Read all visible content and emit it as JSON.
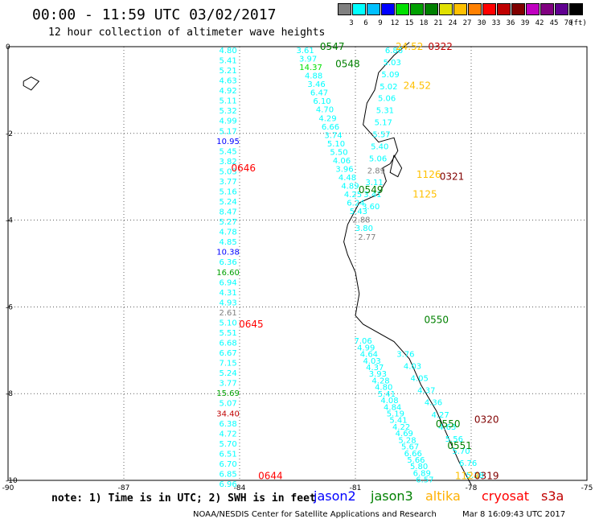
{
  "title": "00:00 - 11:59 UTC 03/02/2017",
  "subtitle": "12 hour collection of altimeter wave heights",
  "legend": {
    "unit": "(ft)",
    "colors": [
      "#808080",
      "#00ffff",
      "#00c0ff",
      "#0000ff",
      "#00e000",
      "#00a000",
      "#008000",
      "#e0e000",
      "#ffc000",
      "#ff8000",
      "#ff0000",
      "#c00000",
      "#800000",
      "#c000c0",
      "#800080",
      "#600090",
      "#000000"
    ],
    "labels": [
      "3",
      "6",
      "9",
      "12",
      "15",
      "18",
      "21",
      "24",
      "27",
      "30",
      "33",
      "36",
      "39",
      "42",
      "45",
      "70"
    ]
  },
  "chart_data": {
    "type": "map",
    "xlim": [
      -90,
      -75
    ],
    "ylim": [
      -10,
      0
    ],
    "x_ticks": [
      "-90",
      "-87",
      "-84",
      "-81",
      "-78",
      "-75"
    ],
    "y_ticks": [
      "0",
      "-2",
      "-4",
      "-6",
      "-8",
      "-10"
    ],
    "tracks": [
      {
        "color": "#00ffff",
        "lon": -84.3,
        "lat0": 0,
        "lat1": -10,
        "values": [
          "4.80",
          "5.41",
          "5.21",
          "4.63",
          "4.92",
          "5.11",
          "5.32",
          "4.99",
          "5.17",
          "10.95",
          "5.45",
          "3.82",
          "5.03",
          "3.77",
          "5.16",
          "5.24",
          "8.47",
          "5.27",
          "4.78",
          "4.85",
          "10.38",
          "6.36",
          "16.60",
          "6.94",
          "4.31",
          "4.93",
          "2.61",
          "5.10",
          "5.51",
          "6.68",
          "6.67",
          "7.15",
          "5.24",
          "3.77",
          "15.69",
          "5.07",
          "34.40",
          "6.38",
          "4.72",
          "5.70",
          "6.51",
          "6.70",
          "6.85",
          "6.96"
        ],
        "special": {
          "9": "#0000ff",
          "20": "#0000ff",
          "22": "#00a000",
          "26": "#808080",
          "34": "#00a000",
          "36": "#c00000"
        }
      },
      {
        "color": "#00ffff",
        "lon": -82.3,
        "lat0": 0,
        "lat1": -4.3,
        "lon1": -80.7,
        "values": [
          "3.61",
          "3.97",
          "14.37",
          "4.88",
          "3.46",
          "6.47",
          "6.10",
          "4.70",
          "4.29",
          "6.66",
          "3.74",
          "5.10",
          "5.50",
          "4.06",
          "3.96",
          "4.48",
          "4.89",
          "4.25",
          "6.24",
          "5.43",
          "2.88",
          "3.80",
          "2.77"
        ],
        "special": {
          "2": "#00e000",
          "20": "#808080",
          "22": "#808080"
        }
      },
      {
        "color": "#00ffff",
        "lon": -80.0,
        "lat0": 0,
        "lat1": -3.6,
        "lon1": -80.6,
        "values": [
          "6.86",
          "5.03",
          "5.09",
          "5.02",
          "5.06",
          "5.31",
          "5.17",
          "5.57",
          "5.40",
          "5.06",
          "2.89",
          "3.11",
          "3.41",
          "3.60"
        ],
        "special": {
          "10": "#808080"
        }
      },
      {
        "color": "#00ffff",
        "lon": -80.8,
        "lat0": -6.7,
        "lat1": -9.9,
        "lon1": -79.2,
        "values": [
          "7.06",
          "4.99",
          "4.64",
          "4.03",
          "4.37",
          "3.93",
          "4.28",
          "4.80",
          "5.41",
          "4.08",
          "4.84",
          "5.19",
          "5.41",
          "4.22",
          "4.69",
          "5.28",
          "5.67",
          "6.66",
          "5.66",
          "5.80",
          "6.89",
          "6.57"
        ]
      },
      {
        "color": "#00ffff",
        "lon": -79.7,
        "lat0": -7.0,
        "lat1": -9.8,
        "lon1": -77.9,
        "values": [
          "3.76",
          "4.03",
          "4.05",
          "4.37",
          "4.36",
          "4.27",
          "4.63",
          "5.56",
          "5.70",
          "6.76",
          "5.28"
        ]
      }
    ],
    "times": [
      {
        "text": "0547",
        "lon": -81.6,
        "lat": 0,
        "color": "#008000"
      },
      {
        "text": "0548",
        "lon": -81.2,
        "lat": -0.4,
        "color": "#008000"
      },
      {
        "text": "24.52",
        "lon": -79.6,
        "lat": 0,
        "color": "#ffc000"
      },
      {
        "text": "0322",
        "lon": -78.8,
        "lat": 0,
        "color": "#c00000"
      },
      {
        "text": "24.52",
        "lon": -79.4,
        "lat": -0.9,
        "color": "#ffc000"
      },
      {
        "text": "0646",
        "lon": -83.9,
        "lat": -2.8,
        "color": "#ff0000"
      },
      {
        "text": "0321",
        "lon": -78.5,
        "lat": -3.0,
        "color": "#800000"
      },
      {
        "text": "1126",
        "lon": -79.1,
        "lat": -2.95,
        "color": "#ffc000"
      },
      {
        "text": "1125",
        "lon": -79.2,
        "lat": -3.4,
        "color": "#ffc000"
      },
      {
        "text": "0549",
        "lon": -80.6,
        "lat": -3.3,
        "color": "#008000"
      },
      {
        "text": "0645",
        "lon": -83.7,
        "lat": -6.4,
        "color": "#ff0000"
      },
      {
        "text": "0550",
        "lon": -78.9,
        "lat": -6.3,
        "color": "#008000"
      },
      {
        "text": "0550",
        "lon": -78.6,
        "lat": -8.7,
        "color": "#008000"
      },
      {
        "text": "0320",
        "lon": -77.6,
        "lat": -8.6,
        "color": "#800000"
      },
      {
        "text": "0551",
        "lon": -78.3,
        "lat": -9.2,
        "color": "#008000"
      },
      {
        "text": "0644",
        "lon": -83.2,
        "lat": -9.9,
        "color": "#ff0000"
      },
      {
        "text": "1124",
        "lon": -78.1,
        "lat": -9.9,
        "color": "#ffc000"
      },
      {
        "text": "0319",
        "lon": -77.6,
        "lat": -9.9,
        "color": "#800000"
      }
    ]
  },
  "note": "note: 1) Time is in UTC; 2) SWH is in feet",
  "satellites": [
    {
      "name": "jason2",
      "color": "#0000ff"
    },
    {
      "name": "jason3",
      "color": "#008000"
    },
    {
      "name": "altika",
      "color": "#ffb000"
    },
    {
      "name": "cryosat",
      "color": "#ff0000"
    },
    {
      "name": "s3a",
      "color": "#c00000"
    }
  ],
  "footer_left": "NOAA/NESDIS Center for Satellite Applications and Research",
  "footer_right": "Mar  8 16:09:43 UTC 2017"
}
